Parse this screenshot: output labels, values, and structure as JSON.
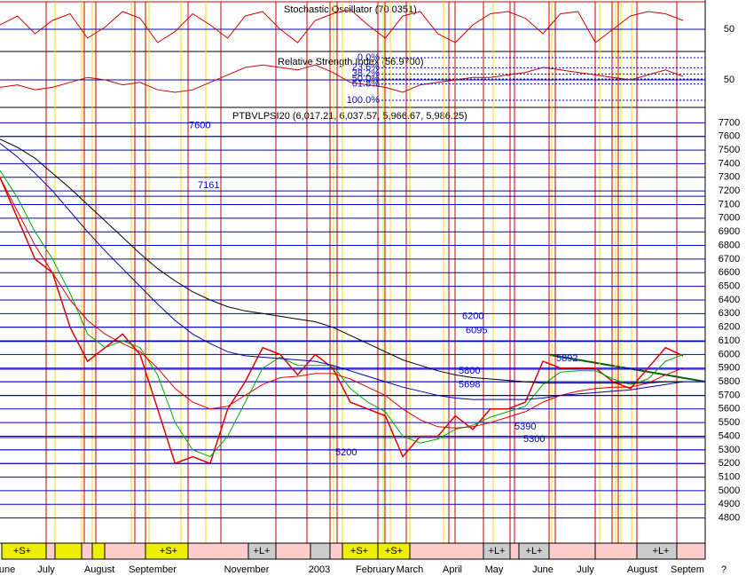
{
  "chart_data": [
    {
      "type": "line",
      "title": "Stochastic Oscillator (70.0351)",
      "ylim": [
        0,
        100
      ],
      "yticks": [
        50
      ],
      "series": [
        {
          "name": "Stochastic",
          "color": "#cc0000",
          "values": [
            60,
            80,
            40,
            70,
            85,
            30,
            55,
            90,
            75,
            20,
            45,
            85,
            60,
            30,
            80,
            90,
            50,
            20,
            70,
            85,
            95,
            60,
            30,
            80,
            90,
            40,
            20,
            60,
            85,
            90,
            75,
            40,
            85,
            90,
            20,
            50,
            80,
            90,
            85,
            70
          ]
        }
      ]
    },
    {
      "type": "line",
      "title": "Relative Strength Index (56.9700)",
      "ylim": [
        0,
        100
      ],
      "yticks": [
        50
      ],
      "fib_levels": [
        {
          "value": 0,
          "label": "0.0%"
        },
        {
          "value": 23.6,
          "label": "23.6%"
        },
        {
          "value": 38.2,
          "label": "38.2%"
        },
        {
          "value": 50,
          "label": "50.0%"
        },
        {
          "value": 61.8,
          "label": "61.8%"
        },
        {
          "value": 100,
          "label": "100.0%"
        }
      ],
      "series": [
        {
          "name": "RSI",
          "color": "#cc0000",
          "values": [
            35,
            40,
            30,
            35,
            45,
            55,
            50,
            40,
            45,
            30,
            25,
            30,
            45,
            60,
            75,
            80,
            75,
            70,
            80,
            65,
            45,
            40,
            35,
            25,
            40,
            45,
            50,
            55,
            55,
            60,
            65,
            75,
            70,
            65,
            60,
            55,
            50,
            60,
            70,
            57
          ]
        }
      ]
    },
    {
      "type": "line",
      "title": "PTBVLPSI20 (6,017.21, 6,037.57, 5,966.67, 5,986.25)",
      "ylim": [
        4700,
        7800
      ],
      "yticks": [
        4800,
        4900,
        5000,
        5100,
        5200,
        5300,
        5400,
        5500,
        5600,
        5700,
        5800,
        5900,
        6000,
        6100,
        6200,
        6300,
        6400,
        6500,
        6600,
        6700,
        6800,
        6900,
        7000,
        7100,
        7200,
        7300,
        7400,
        7500,
        7600,
        7700
      ],
      "levels": [
        7600,
        7161,
        6200,
        6095,
        5892,
        5800,
        5698,
        5390,
        5300,
        5200
      ],
      "months": [
        "une",
        "July",
        "August",
        "September",
        "November",
        "2003",
        "February",
        "March",
        "April",
        "May",
        "June",
        "July",
        "August",
        "Septem",
        "?"
      ],
      "signals": [
        "+S+",
        "+S+",
        "+L+",
        "+S+",
        "+S+",
        "+L+",
        "+L+",
        "+L+"
      ],
      "series": [
        {
          "name": "Price",
          "color": "#dd0000",
          "values": [
            7300,
            7000,
            6700,
            6600,
            6200,
            5950,
            6050,
            6150,
            6000,
            5600,
            5200,
            5250,
            5200,
            5600,
            5800,
            6050,
            6000,
            5850,
            6000,
            5900,
            5650,
            5600,
            5550,
            5250,
            5400,
            5400,
            5550,
            5450,
            5600,
            5600,
            5650,
            5950,
            5900,
            5900,
            5900,
            5800,
            5750,
            5900,
            6050,
            5990
          ]
        },
        {
          "name": "MA short",
          "color": "#00aa00",
          "values": [
            7350,
            7150,
            6900,
            6700,
            6450,
            6150,
            6050,
            6100,
            6050,
            5850,
            5500,
            5300,
            5250,
            5400,
            5650,
            5900,
            5980,
            5920,
            5920,
            5920,
            5750,
            5650,
            5580,
            5400,
            5350,
            5380,
            5450,
            5480,
            5540,
            5580,
            5620,
            5780,
            5870,
            5880,
            5880,
            5820,
            5780,
            5820,
            5950,
            6000
          ]
        },
        {
          "name": "MA mid",
          "color": "#dd0000",
          "values": [
            7300,
            7050,
            6800,
            6600,
            6400,
            6250,
            6150,
            6080,
            6020,
            5900,
            5750,
            5650,
            5600,
            5620,
            5700,
            5780,
            5830,
            5840,
            5860,
            5860,
            5820,
            5760,
            5700,
            5600,
            5520,
            5470,
            5460,
            5470,
            5500,
            5540,
            5580,
            5650,
            5700,
            5730,
            5750,
            5760,
            5760,
            5790,
            5850,
            5900
          ]
        },
        {
          "name": "MA long",
          "color": "#0000aa",
          "values": [
            7550,
            7450,
            7330,
            7200,
            7050,
            6900,
            6760,
            6630,
            6500,
            6370,
            6250,
            6150,
            6080,
            6020,
            5990,
            5980,
            5970,
            5960,
            5950,
            5920,
            5880,
            5840,
            5800,
            5760,
            5730,
            5700,
            5680,
            5670,
            5670,
            5670,
            5670,
            5680,
            5700,
            5710,
            5720,
            5730,
            5740,
            5760,
            5780,
            5800
          ]
        },
        {
          "name": "MA 200",
          "color": "#000000",
          "values": [
            7580,
            7520,
            7440,
            7330,
            7220,
            7100,
            6980,
            6860,
            6740,
            6630,
            6540,
            6460,
            6400,
            6350,
            6320,
            6300,
            6280,
            6260,
            6240,
            6200,
            6140,
            6080,
            6020,
            5960,
            5920,
            5880,
            5850,
            5830,
            5820,
            5810,
            5800,
            5790,
            5790,
            5790,
            5790,
            5790,
            5790,
            5790,
            5800,
            5800
          ]
        }
      ]
    }
  ]
}
